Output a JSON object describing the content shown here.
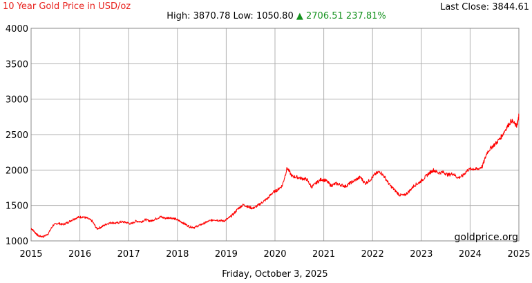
{
  "header": {
    "title": "10 Year Gold Price in USD/oz",
    "last_close_label": "Last Close:",
    "last_close_value": "3844.61",
    "high_label": "High:",
    "high_value": "3870.78",
    "low_label": "Low:",
    "low_value": "1050.80",
    "change_arrow": "▲",
    "change_value": "2706.51",
    "change_percent": "237.81%"
  },
  "footer": {
    "date": "Friday, October 3, 2025"
  },
  "watermark": "goldprice.org",
  "colors": {
    "line": "#ff0000",
    "title": "#e8231f",
    "change_up": "#14921e",
    "grid": "#b0b0b0"
  },
  "chart_data": {
    "type": "line",
    "title": "10 Year Gold Price in USD/oz",
    "xlim": [
      2015,
      2025
    ],
    "ylim": [
      1000,
      4000
    ],
    "x_ticks": [
      "2015",
      "2016",
      "2017",
      "2018",
      "2019",
      "2020",
      "2021",
      "2022",
      "2023",
      "2024",
      "2025"
    ],
    "y_ticks": [
      "1000",
      "1500",
      "2000",
      "2500",
      "3000",
      "3500",
      "4000"
    ],
    "grid": true,
    "series": [
      {
        "x": [
          2015.0,
          2015.08,
          2015.15,
          2015.25,
          2015.35,
          2015.45,
          2015.55,
          2015.65,
          2015.75,
          2015.85,
          2015.95,
          2016.05,
          2016.15,
          2016.25,
          2016.35,
          2016.45,
          2016.55,
          2016.65,
          2016.75,
          2016.85,
          2016.95,
          2017.05,
          2017.15,
          2017.25,
          2017.35,
          2017.45,
          2017.55,
          2017.65,
          2017.75,
          2017.85,
          2017.95,
          2018.05,
          2018.15,
          2018.25,
          2018.35,
          2018.45,
          2018.55,
          2018.65,
          2018.75,
          2018.85,
          2018.95,
          2019.05,
          2019.15,
          2019.25,
          2019.35,
          2019.45,
          2019.55,
          2019.65,
          2019.75,
          2019.85,
          2019.95,
          2020.05,
          2020.15,
          2020.25,
          2020.35,
          2020.45,
          2020.55,
          2020.65,
          2020.75,
          2020.85,
          2020.95,
          2021.05,
          2021.15,
          2021.25,
          2021.35,
          2021.45,
          2021.55,
          2021.65,
          2021.75,
          2021.85,
          2021.95,
          2022.05,
          2022.15,
          2022.25,
          2022.35,
          2022.45,
          2022.55,
          2022.65,
          2022.75,
          2022.85,
          2022.95,
          2023.05,
          2023.15,
          2023.25,
          2023.35,
          2023.45,
          2023.55,
          2023.65,
          2023.75,
          2023.85,
          2023.95,
          2024.05,
          2024.15,
          2024.25,
          2024.35,
          2024.45,
          2024.55,
          2024.65,
          2024.75,
          2024.85,
          2024.95,
          2024.98,
          2025.0
        ],
        "y": [
          1180,
          1120,
          1070,
          1060,
          1100,
          1220,
          1250,
          1230,
          1260,
          1300,
          1330,
          1340,
          1320,
          1280,
          1170,
          1200,
          1240,
          1260,
          1250,
          1270,
          1260,
          1240,
          1280,
          1270,
          1300,
          1280,
          1310,
          1340,
          1320,
          1330,
          1310,
          1280,
          1240,
          1200,
          1190,
          1220,
          1250,
          1280,
          1300,
          1290,
          1280,
          1320,
          1380,
          1460,
          1510,
          1480,
          1460,
          1500,
          1550,
          1600,
          1680,
          1720,
          1780,
          2030,
          1910,
          1900,
          1880,
          1870,
          1760,
          1820,
          1870,
          1850,
          1780,
          1810,
          1790,
          1770,
          1820,
          1860,
          1900,
          1810,
          1860,
          1940,
          1980,
          1900,
          1790,
          1720,
          1650,
          1640,
          1700,
          1780,
          1820,
          1880,
          1950,
          2000,
          1960,
          1970,
          1930,
          1950,
          1890,
          1920,
          2000,
          2020,
          2010,
          2050,
          2250,
          2330,
          2390,
          2480,
          2600,
          2700,
          2620,
          2680,
          2780
        ]
      }
    ],
    "points_note_hidden": true
  }
}
